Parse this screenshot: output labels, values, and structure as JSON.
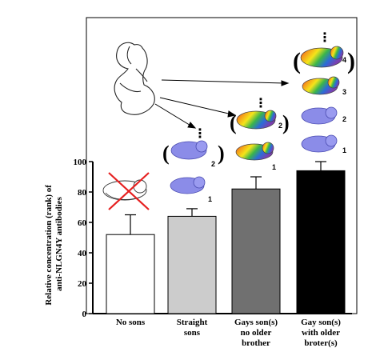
{
  "chart_data": {
    "type": "bar",
    "categories": [
      [
        "No sons"
      ],
      [
        "Straight",
        "sons"
      ],
      [
        "Gays son(s)",
        "no older",
        "brother"
      ],
      [
        "Gay son(s)",
        "with  older",
        "broter(s)"
      ]
    ],
    "values": [
      52,
      64,
      82,
      94
    ],
    "errors": [
      13,
      5,
      8,
      6
    ],
    "bar_colors": [
      "#ffffff",
      "#cccccc",
      "#707070",
      "#000000"
    ],
    "ylabel": [
      "Relative concentration (rank) of",
      "anti-NLGN4Y antibodies"
    ],
    "ylim": [
      0,
      100
    ],
    "yticks": [
      0,
      20,
      40,
      60,
      80,
      100
    ],
    "illustration": {
      "icons": [
        "pregnant-woman-icon",
        "crossed-baby-icon",
        "baby-icon",
        "rainbow-baby-icon",
        "arrow-icon"
      ],
      "baby_numbers": [
        "1",
        "2",
        "1",
        "2",
        "1",
        "2",
        "3",
        "4"
      ],
      "ellipsis": "⋮"
    }
  }
}
